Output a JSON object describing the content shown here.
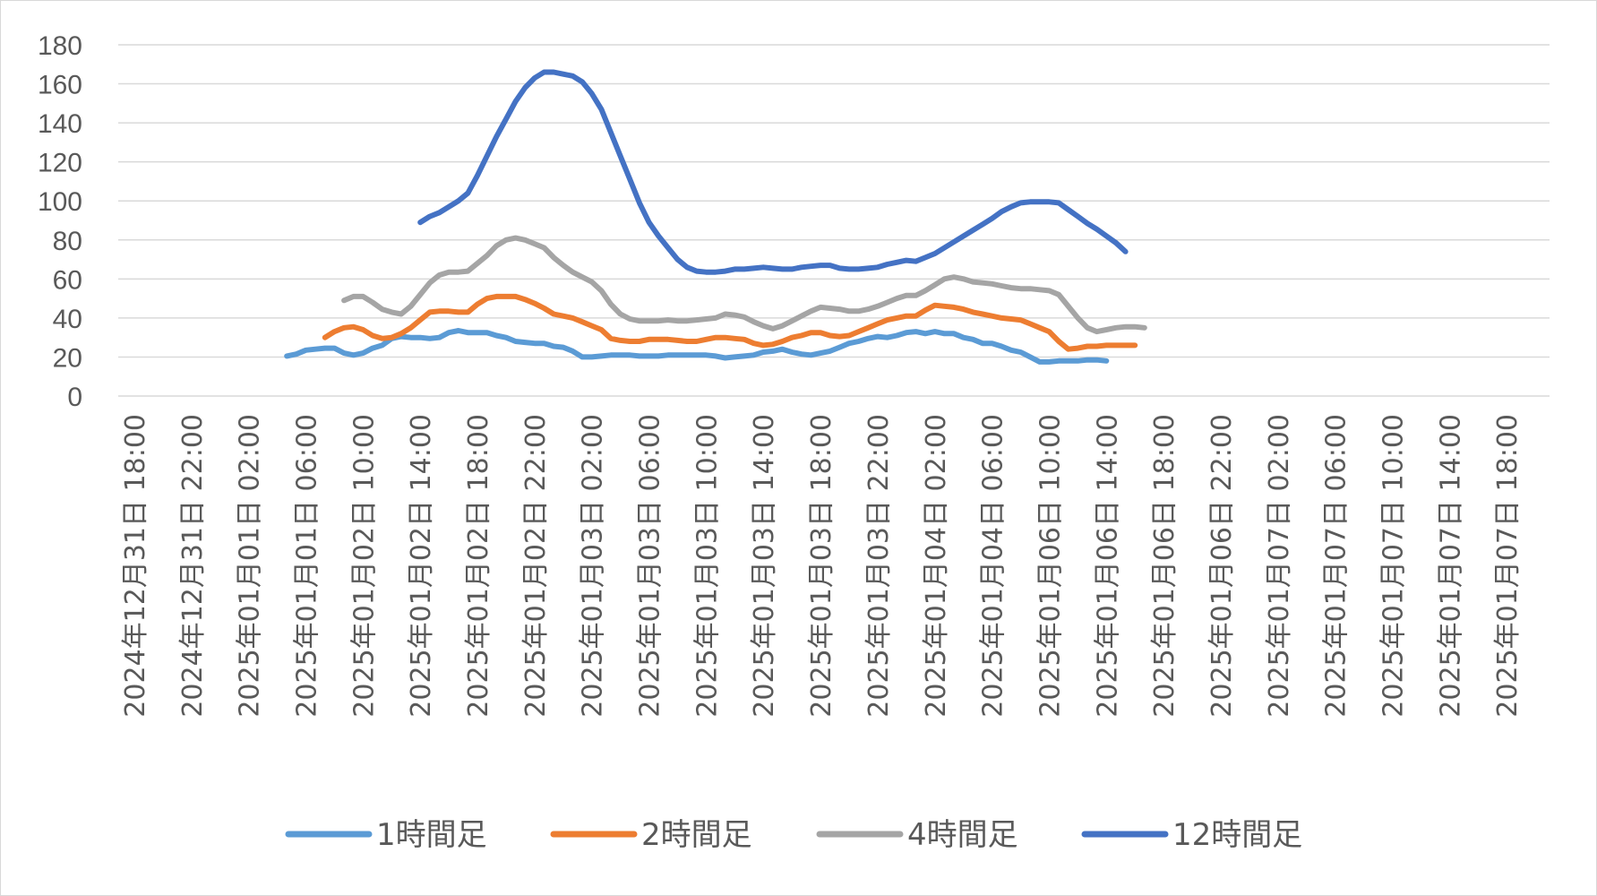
{
  "chart_data": {
    "type": "line",
    "title": "",
    "xlabel": "",
    "ylabel": "",
    "ylim": [
      0,
      180
    ],
    "yticks": [
      "0",
      "20",
      "40",
      "60",
      "80",
      "100",
      "120",
      "140",
      "160",
      "180"
    ],
    "grid": true,
    "legend_position": "bottom",
    "x_range": [
      0,
      123
    ],
    "x_tick_labels": [
      "2024年12月31日 18:00",
      "2024年12月31日 22:00",
      "2025年01月01日 02:00",
      "2025年01月01日 06:00",
      "2025年01月02日 10:00",
      "2025年01月02日 14:00",
      "2025年01月02日 18:00",
      "2025年01月02日 22:00",
      "2025年01月03日 02:00",
      "2025年01月03日 06:00",
      "2025年01月03日 10:00",
      "2025年01月03日 14:00",
      "2025年01月03日 18:00",
      "2025年01月03日 22:00",
      "2025年01月04日 02:00",
      "2025年01月04日 06:00",
      "2025年01月06日 10:00",
      "2025年01月06日 14:00",
      "2025年01月06日 18:00",
      "2025年01月06日 22:00",
      "2025年01月07日 02:00",
      "2025年01月07日 06:00",
      "2025年01月07日 10:00",
      "2025年01月07日 14:00",
      "2025年01月07日 18:00"
    ],
    "series": [
      {
        "name": "1時間足",
        "color": "#5b9bd5",
        "start_index": 16,
        "values": [
          20.5,
          21.5,
          23.5,
          24,
          24.5,
          24.5,
          22,
          21,
          22,
          24.5,
          26,
          29.5,
          30.5,
          30,
          30,
          29.5,
          30,
          32.5,
          33.5,
          32.5,
          32.5,
          32.5,
          31,
          30,
          28,
          27.5,
          27,
          27,
          25.5,
          25,
          23,
          20,
          20,
          20.5,
          21,
          21,
          21,
          20.5,
          20.5,
          20.5,
          21,
          21,
          21,
          21,
          21,
          20.5,
          19.5,
          20,
          20.5,
          21,
          22.5,
          23,
          24,
          22.5,
          21.5,
          21,
          22,
          23,
          25,
          27,
          28,
          29.5,
          30.5,
          30,
          31,
          32.5,
          33,
          32,
          33,
          32,
          32,
          30,
          29,
          27,
          27,
          25.5,
          23.5,
          22.5,
          20,
          17.5,
          17.5,
          18,
          18,
          18,
          18.5,
          18.5,
          18
        ]
      },
      {
        "name": "2時間足",
        "color": "#ed7d31",
        "start_index": 20,
        "values": [
          30,
          33,
          35,
          35.5,
          34,
          31,
          29.5,
          30,
          32,
          35,
          39,
          43,
          43.5,
          43.5,
          43,
          43,
          47,
          50,
          51,
          51,
          51,
          49.5,
          47.5,
          45,
          42,
          41,
          40,
          38,
          36,
          34,
          29.5,
          28.5,
          28,
          28,
          29,
          29,
          29,
          28.5,
          28,
          28,
          29,
          30,
          30,
          29.5,
          29,
          27,
          26,
          26.5,
          28,
          30,
          31,
          32.5,
          32.5,
          31,
          30.5,
          31,
          33,
          35,
          37,
          39,
          40,
          41,
          41,
          44,
          46.5,
          46,
          45.5,
          44.5,
          43,
          42,
          41,
          40,
          39.5,
          39,
          37,
          35,
          33,
          28,
          24,
          24.5,
          25.5,
          25.5,
          26,
          26,
          26,
          26
        ]
      },
      {
        "name": "4時間足",
        "color": "#a5a5a5",
        "start_index": 22,
        "values": [
          49,
          51,
          51,
          48,
          44.5,
          43,
          42,
          46,
          52,
          58,
          62,
          63.5,
          63.5,
          64,
          68,
          72,
          77,
          80,
          81,
          80,
          78,
          76,
          71,
          67,
          63.5,
          61,
          58.5,
          54,
          47,
          42,
          39.5,
          38.5,
          38.5,
          38.5,
          39,
          38.5,
          38.5,
          39,
          39.5,
          40,
          42,
          41.5,
          40.5,
          38,
          36,
          34.5,
          36,
          38.5,
          41,
          43.5,
          45.5,
          45,
          44.5,
          43.5,
          43.5,
          44.5,
          46,
          48,
          50,
          51.5,
          51.5,
          54,
          57,
          60,
          61,
          60,
          58.5,
          58,
          57.5,
          56.5,
          55.5,
          55,
          55,
          54.5,
          54,
          52,
          46,
          40,
          35,
          33,
          34,
          35,
          35.5,
          35.5,
          35
        ]
      },
      {
        "name": "12時間足",
        "color": "#4472c4",
        "start_index": 30,
        "values": [
          89,
          92,
          94,
          97,
          100,
          104,
          113,
          123,
          133,
          142,
          151,
          158,
          163,
          166,
          166,
          165,
          164,
          161,
          155,
          147,
          135,
          123,
          111,
          99,
          89,
          82,
          76,
          70,
          66,
          64,
          63.5,
          63.5,
          64,
          65,
          65,
          65.5,
          66,
          65.5,
          65,
          65,
          66,
          66.5,
          67,
          67,
          65.5,
          65,
          65,
          65.5,
          66,
          67.5,
          68.5,
          69.5,
          69,
          71,
          73,
          76,
          79,
          82,
          85,
          88,
          91,
          94.5,
          97,
          99,
          99.5,
          99.5,
          99.5,
          99,
          95.5,
          92,
          88.5,
          85.5,
          82,
          78.5,
          74
        ]
      }
    ]
  }
}
